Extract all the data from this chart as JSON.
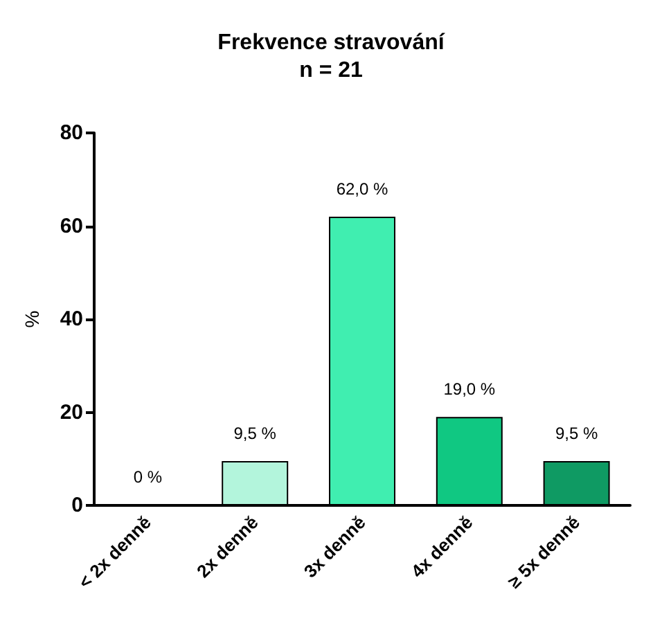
{
  "chart_data": {
    "type": "bar",
    "title": "Frekvence stravování",
    "subtitle": "n = 21",
    "ylabel": "%",
    "categories": [
      "< 2x denně",
      "2x denně",
      "3x denně",
      "4x denně",
      "≥ 5x denně"
    ],
    "values": [
      0,
      9.5,
      62,
      19,
      9.5
    ],
    "value_labels": [
      "0 %",
      "9,5 %",
      "62,0 %",
      "19,0 %",
      "9,5 %"
    ],
    "colors": [
      "#000000",
      "#b3f5dc",
      "#40eeb0",
      "#10c882",
      "#0f9a63"
    ],
    "ylim": [
      0,
      80
    ],
    "yticks": [
      0,
      20,
      40,
      60,
      80
    ],
    "grid": false
  }
}
